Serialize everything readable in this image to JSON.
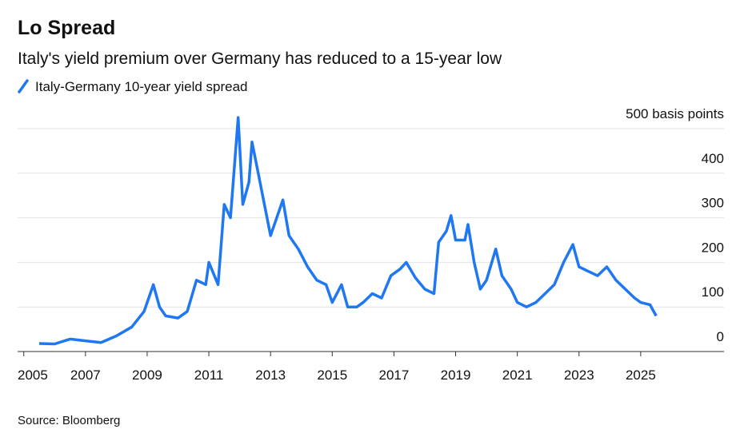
{
  "chart_data": {
    "type": "line",
    "title": "Lo Spread",
    "subtitle": "Italy's yield premium over Germany has reduced to a 15-year low",
    "source": "Source: Bloomberg",
    "x": [
      2005.5,
      2006.0,
      2006.5,
      2007.0,
      2007.5,
      2008.0,
      2008.5,
      2008.9,
      2009.2,
      2009.4,
      2009.6,
      2010.0,
      2010.3,
      2010.6,
      2010.9,
      2011.0,
      2011.3,
      2011.5,
      2011.7,
      2011.95,
      2012.1,
      2012.3,
      2012.4,
      2012.6,
      2012.8,
      2013.0,
      2013.2,
      2013.4,
      2013.6,
      2013.9,
      2014.2,
      2014.5,
      2014.8,
      2015.0,
      2015.3,
      2015.5,
      2015.8,
      2016.0,
      2016.3,
      2016.6,
      2016.9,
      2017.2,
      2017.4,
      2017.7,
      2018.0,
      2018.3,
      2018.45,
      2018.7,
      2018.85,
      2019.0,
      2019.3,
      2019.4,
      2019.6,
      2019.8,
      2020.0,
      2020.3,
      2020.5,
      2020.8,
      2021.0,
      2021.3,
      2021.6,
      2021.9,
      2022.2,
      2022.5,
      2022.8,
      2023.0,
      2023.3,
      2023.6,
      2023.9,
      2024.2,
      2024.5,
      2024.8,
      2025.0,
      2025.3,
      2025.5
    ],
    "series": [
      {
        "name": "Italy-Germany 10-year yield spread",
        "color": "#1f77f2",
        "values": [
          18,
          17,
          28,
          24,
          20,
          35,
          55,
          90,
          150,
          100,
          80,
          75,
          90,
          160,
          150,
          200,
          150,
          330,
          300,
          525,
          330,
          380,
          470,
          400,
          330,
          260,
          300,
          340,
          260,
          230,
          190,
          160,
          150,
          110,
          150,
          100,
          100,
          110,
          130,
          120,
          170,
          185,
          200,
          165,
          140,
          130,
          245,
          270,
          305,
          250,
          250,
          285,
          200,
          140,
          160,
          230,
          170,
          140,
          110,
          100,
          110,
          130,
          150,
          200,
          240,
          190,
          180,
          170,
          190,
          160,
          140,
          120,
          110,
          105,
          80
        ]
      }
    ],
    "xlim": [
      2004.8,
      2027.7
    ],
    "xticks": [
      2005,
      2007,
      2009,
      2011,
      2013,
      2015,
      2017,
      2019,
      2021,
      2023,
      2025
    ],
    "ylim": [
      0,
      500
    ],
    "yticks": [
      0,
      100,
      200,
      300,
      400,
      {
        "value": 500,
        "label": "500 basis points"
      }
    ],
    "grid": true
  }
}
